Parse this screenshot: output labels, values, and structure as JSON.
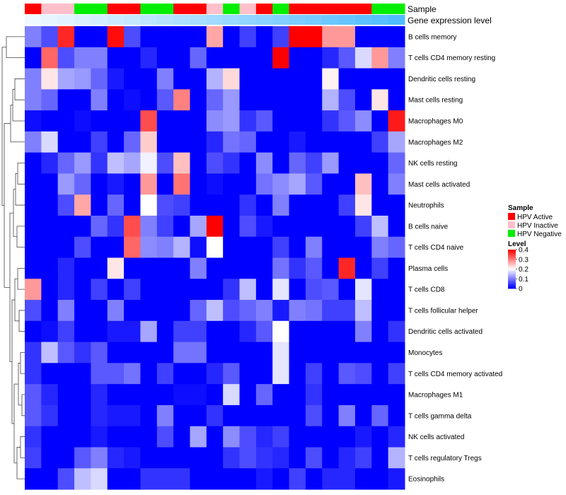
{
  "chart_data": {
    "type": "heatmap",
    "annotation_titles": {
      "sample": "Sample",
      "gene": "Gene expression level"
    },
    "legend": {
      "sample_title": "Sample",
      "sample_entries": [
        {
          "label": "HPV Active",
          "color": "#ff0000"
        },
        {
          "label": "HPV Inactive",
          "color": "#ffc0cb"
        },
        {
          "label": "HPV Negative",
          "color": "#00ee00"
        }
      ],
      "level_title": "Level",
      "level_ticks": [
        "0.4",
        "0.3",
        "0.2",
        "0.1",
        "0"
      ],
      "level_values": [
        0.4,
        0.3,
        0.2,
        0.1,
        0.0
      ],
      "scale_colors": [
        "#0000ff",
        "#ffffff",
        "#ff0000"
      ],
      "scale_range": [
        0,
        0.4
      ]
    },
    "sample_groups": [
      "HPV Active",
      "HPV Inactive",
      "HPV Inactive",
      "HPV Negative",
      "HPV Negative",
      "HPV Active",
      "HPV Active",
      "HPV Negative",
      "HPV Negative",
      "HPV Active",
      "HPV Active",
      "HPV Inactive",
      "HPV Negative",
      "HPV Inactive",
      "HPV Active",
      "HPV Negative",
      "HPV Active",
      "HPV Active",
      "HPV Active",
      "HPV Active",
      "HPV Active",
      "HPV Negative",
      "HPV Negative"
    ],
    "gene_expression_level": [
      0.0,
      0.05,
      0.09,
      0.14,
      0.18,
      0.23,
      0.27,
      0.32,
      0.36,
      0.41,
      0.45,
      0.5,
      0.55,
      0.59,
      0.64,
      0.68,
      0.73,
      0.77,
      0.82,
      0.86,
      0.91,
      0.95,
      1.0
    ],
    "rows": [
      "B cells memory",
      "T cells CD4 memory resting",
      "Dendritic cells resting",
      "Mast cells resting",
      "Macrophages M0",
      "Macrophages M2",
      "NK cells resting",
      "Mast cells activated",
      "Neutrophils",
      "B cells naive",
      "T cells CD4 naive",
      "Plasma cells",
      "T cells CD8",
      "T cells follicular helper",
      "Dendritic cells activated",
      "Monocytes",
      "T cells CD4 memory activated",
      "Macrophages M1",
      "T cells gamma delta",
      "NK cells activated",
      "T cells regulatory  Tregs",
      "Eosinophils"
    ],
    "values": [
      [
        0.1,
        0.06,
        0.37,
        0,
        0,
        0.39,
        0.06,
        0,
        0,
        0,
        0,
        0.27,
        0,
        0.05,
        0,
        0.05,
        0.4,
        0.4,
        0.28,
        0.28,
        0,
        0,
        0
      ],
      [
        0,
        0.32,
        0.06,
        0.1,
        0.1,
        0,
        0,
        0.03,
        0,
        0,
        0.08,
        0,
        0,
        0,
        0,
        0.4,
        0,
        0,
        0.03,
        0.07,
        0.17,
        0.28,
        0.1
      ],
      [
        0.1,
        0.22,
        0.13,
        0.12,
        0.08,
        0.02,
        0,
        0,
        0.1,
        0,
        0,
        0.14,
        0.23,
        0,
        0,
        0,
        0,
        0,
        0.21,
        0,
        0,
        0,
        0
      ],
      [
        0.1,
        0.08,
        0,
        0,
        0.1,
        0,
        0.01,
        0,
        0.07,
        0.3,
        0,
        0.08,
        0.12,
        0,
        0,
        0,
        0,
        0,
        0.14,
        0.06,
        0,
        0.22,
        0
      ],
      [
        0.01,
        0,
        0,
        0.01,
        0,
        0,
        0,
        0.34,
        0,
        0,
        0,
        0.11,
        0.12,
        0.04,
        0.07,
        0,
        0,
        0,
        0.04,
        0.07,
        0.11,
        0,
        0.38
      ],
      [
        0.1,
        0.17,
        0,
        0,
        0.05,
        0,
        0.08,
        0.24,
        0,
        0,
        0,
        0.03,
        0.09,
        0.08,
        0,
        0,
        0.02,
        0,
        0,
        0,
        0,
        0.05,
        0.13
      ],
      [
        0,
        0.03,
        0.08,
        0.12,
        0.04,
        0.15,
        0.13,
        0.19,
        0.06,
        0.25,
        0,
        0.06,
        0.04,
        0,
        0.11,
        0,
        0.08,
        0.05,
        0.12,
        0,
        0,
        0,
        0.08
      ],
      [
        0,
        0,
        0.12,
        0.08,
        0,
        0.02,
        0,
        0.28,
        0,
        0.31,
        0,
        0.01,
        0,
        0,
        0.09,
        0.11,
        0.13,
        0.07,
        0,
        0,
        0.25,
        0,
        0.1
      ],
      [
        0,
        0,
        0.06,
        0.27,
        0,
        0.08,
        0,
        0.2,
        0.06,
        0.05,
        0,
        0,
        0,
        0.04,
        0,
        0.1,
        0,
        0,
        0,
        0.05,
        0.22,
        0,
        0
      ],
      [
        0,
        0,
        0,
        0,
        0.08,
        0.04,
        0.34,
        0.1,
        0.05,
        0,
        0.13,
        0.4,
        0,
        0.06,
        0.02,
        0,
        0,
        0,
        0,
        0,
        0.05,
        0.15,
        0
      ],
      [
        0,
        0,
        0,
        0.06,
        0,
        0,
        0.32,
        0.11,
        0.1,
        0.14,
        0.01,
        0.2,
        0,
        0,
        0,
        0.05,
        0,
        0.1,
        0,
        0,
        0,
        0.1,
        0.08
      ],
      [
        0,
        0,
        0.03,
        0,
        0,
        0.22,
        0,
        0,
        0,
        0,
        0.1,
        0,
        0,
        0,
        0,
        0.09,
        0.04,
        0.07,
        0,
        0.37,
        0,
        0.05,
        0
      ],
      [
        0.28,
        0,
        0.03,
        0,
        0.05,
        0,
        0.05,
        0,
        0,
        0,
        0,
        0,
        0.04,
        0.15,
        0,
        0.18,
        0,
        0.06,
        0.07,
        0,
        0.18,
        0,
        0
      ],
      [
        0.06,
        0,
        0.1,
        0,
        0,
        0.1,
        0,
        0,
        0,
        0,
        0.08,
        0.15,
        0.06,
        0.08,
        0.1,
        0.02,
        0.1,
        0.09,
        0.05,
        0.05,
        0.15,
        0,
        0
      ],
      [
        0,
        0.01,
        0.05,
        0,
        0,
        0.02,
        0.02,
        0.13,
        0,
        0.05,
        0.05,
        0,
        0,
        0.03,
        0.07,
        0.2,
        0,
        0,
        0,
        0,
        0.1,
        0,
        0.04
      ],
      [
        0.04,
        0.15,
        0.07,
        0.04,
        0.07,
        0,
        0,
        0,
        0,
        0.09,
        0.09,
        0,
        0,
        0,
        0,
        0.18,
        0,
        0,
        0,
        0,
        0,
        0,
        0
      ],
      [
        0.04,
        0,
        0,
        0,
        0.07,
        0.07,
        0.09,
        0,
        0.05,
        0,
        0,
        0.03,
        0.07,
        0,
        0,
        0.18,
        0,
        0.05,
        0,
        0.07,
        0.06,
        0,
        0.05
      ],
      [
        0.07,
        0.03,
        0,
        0,
        0.03,
        0,
        0,
        0,
        0,
        0.01,
        0.01,
        0,
        0.17,
        0,
        0.08,
        0,
        0,
        0.04,
        0,
        0,
        0,
        0,
        0
      ],
      [
        0.07,
        0.04,
        0,
        0,
        0.03,
        0.02,
        0.02,
        0,
        0.1,
        0,
        0,
        0.04,
        0,
        0,
        0,
        0,
        0,
        0.06,
        0,
        0.1,
        0,
        0.08,
        0
      ],
      [
        0.04,
        0,
        0,
        0,
        0.02,
        0,
        0,
        0,
        0.06,
        0,
        0.13,
        0,
        0.11,
        0.06,
        0.03,
        0.05,
        0,
        0,
        0,
        0,
        0.02,
        0,
        0.03
      ],
      [
        0.05,
        0,
        0,
        0.07,
        0.1,
        0.03,
        0.02,
        0,
        0,
        0,
        0,
        0,
        0.04,
        0.06,
        0.04,
        0.03,
        0,
        0.06,
        0,
        0.03,
        0.05,
        0,
        0.14
      ],
      [
        0,
        0,
        0.06,
        0.15,
        0.17,
        0,
        0,
        0.04,
        0.04,
        0.04,
        0,
        0,
        0,
        0,
        0.02,
        0,
        0.05,
        0,
        0.03,
        0.03,
        0,
        0,
        0.02
      ]
    ],
    "grid": false
  }
}
